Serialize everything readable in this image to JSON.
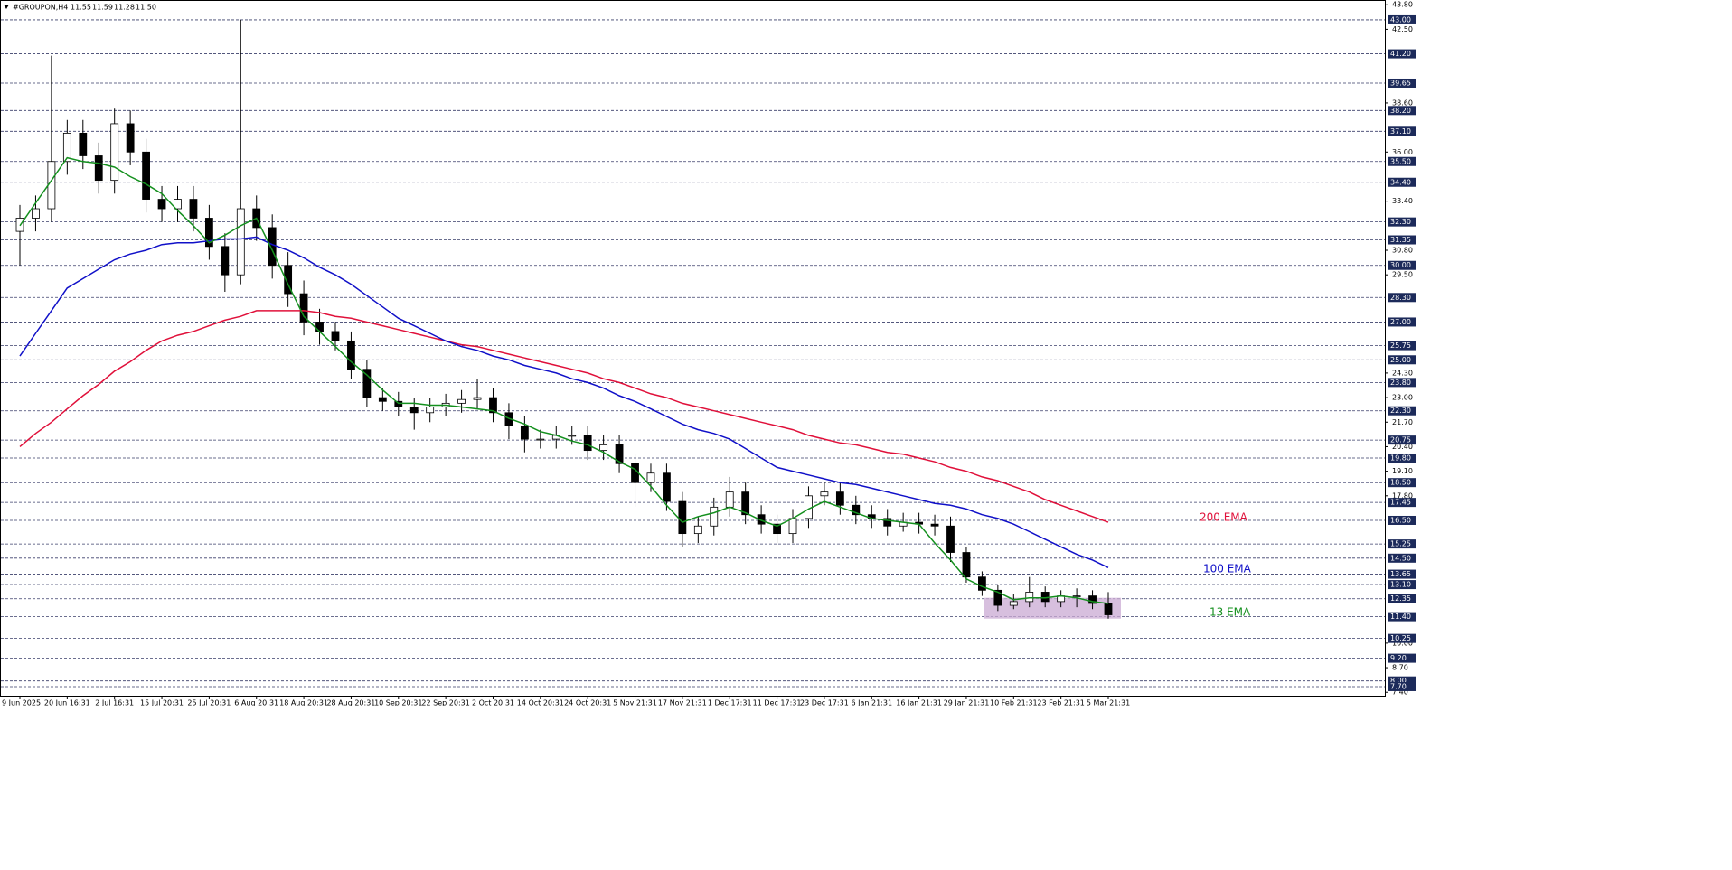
{
  "chart_data": {
    "type": "candlestick",
    "title": "#GROUPON,H4",
    "header_values": [
      {
        "value": 11.55,
        "label": "11.55"
      },
      {
        "value": 11.59,
        "label": "11.59"
      },
      {
        "value": 11.28,
        "label": "11.28"
      },
      {
        "value": 11.5,
        "label": "11.50"
      }
    ],
    "categories": [
      "9 Jun 2025",
      null,
      null,
      "20 Jun 16:31",
      null,
      null,
      "2 Jul 16:31",
      null,
      null,
      "15 Jul 20:31",
      null,
      null,
      "25 Jul 20:31",
      null,
      null,
      "6 Aug 20:31",
      null,
      null,
      "18 Aug 20:31",
      null,
      null,
      "28 Aug 20:31",
      null,
      null,
      "10 Sep 20:31",
      null,
      null,
      "22 Sep 20:31",
      null,
      null,
      "2 Oct 20:31",
      null,
      null,
      "14 Oct 20:31",
      null,
      null,
      "24 Oct 20:31",
      null,
      null,
      "5 Nov 21:31",
      null,
      null,
      "17 Nov 21:31",
      null,
      null,
      "1 Dec 17:31",
      null,
      null,
      "11 Dec 17:31",
      null,
      null,
      "23 Dec 17:31",
      null,
      null,
      "6 Jan 21:31",
      null,
      null,
      "16 Jan 21:31",
      null,
      null,
      "29 Jan 21:31",
      null,
      null,
      "10 Feb 21:31",
      null,
      null,
      "23 Feb 21:31",
      null,
      null,
      "5 Mar 21:31"
    ],
    "open": [
      31.8,
      32.5,
      33,
      35.5,
      37,
      35.8,
      34.5,
      37.5,
      36,
      33.5,
      33,
      33.5,
      32.5,
      31,
      29.5,
      33,
      32,
      30,
      28.5,
      27,
      26.5,
      26,
      24.5,
      23,
      22.8,
      22.5,
      22.2,
      22.5,
      22.7,
      22.9,
      23,
      22.2,
      21.5,
      20.8,
      20.8,
      21,
      21,
      20.2,
      20.5,
      19.5,
      18.5,
      19,
      17.5,
      15.8,
      16.2,
      17.2,
      18,
      16.8,
      16.3,
      15.8,
      16.6,
      17.8,
      18,
      17.3,
      16.8,
      16.6,
      16.2,
      16.4,
      16.3,
      16.2,
      14.8,
      13.5,
      12.8,
      12,
      12.2,
      12.7,
      12.2,
      12.5,
      12.5,
      12.1
    ],
    "high": [
      33.2,
      33.7,
      41.1,
      37.7,
      37.7,
      36.5,
      38.3,
      38.2,
      36.7,
      34.2,
      34.2,
      34.2,
      33.2,
      31.7,
      43.0,
      33.7,
      32.7,
      30.7,
      29.2,
      27.7,
      27.0,
      26.5,
      25.0,
      23.5,
      23.3,
      23.0,
      23.0,
      23.2,
      23.4,
      24.0,
      23.5,
      22.7,
      22.0,
      21.3,
      21.5,
      21.5,
      21.5,
      21.0,
      21.0,
      20.0,
      19.5,
      19.5,
      18.0,
      16.7,
      17.7,
      18.8,
      18.5,
      17.3,
      16.8,
      17.1,
      18.3,
      18.5,
      18.5,
      17.8,
      17.3,
      17.1,
      16.9,
      16.9,
      16.8,
      16.7,
      15.1,
      13.8,
      13.1,
      12.6,
      13.5,
      13.0,
      12.8,
      12.9,
      12.8,
      12.7
    ],
    "low": [
      30.0,
      31.8,
      32.3,
      34.8,
      35.1,
      33.8,
      33.8,
      35.3,
      32.8,
      32.3,
      32.3,
      31.8,
      30.3,
      28.6,
      29.0,
      31.3,
      29.3,
      27.8,
      26.3,
      25.8,
      25.5,
      24.0,
      22.5,
      22.3,
      22.0,
      21.3,
      21.7,
      22.0,
      22.2,
      22.4,
      21.7,
      20.8,
      20.1,
      20.3,
      20.3,
      20.5,
      19.7,
      19.7,
      19.0,
      17.2,
      18.0,
      17.0,
      15.1,
      15.3,
      15.7,
      16.7,
      16.3,
      15.8,
      15.3,
      15.3,
      16.1,
      17.3,
      16.8,
      16.3,
      16.1,
      15.7,
      15.9,
      15.8,
      15.7,
      14.3,
      13.2,
      12.5,
      11.7,
      11.8,
      11.9,
      11.9,
      11.9,
      11.9,
      11.8,
      11.3
    ],
    "close": [
      32.5,
      33,
      35.5,
      37,
      35.8,
      34.5,
      37.5,
      36,
      33.5,
      33,
      33.5,
      32.5,
      31,
      29.5,
      33,
      32,
      30,
      28.5,
      27,
      26.5,
      26,
      24.5,
      23,
      22.8,
      22.5,
      22.2,
      22.5,
      22.7,
      22.9,
      23,
      22.2,
      21.5,
      20.8,
      20.8,
      21,
      21,
      20.2,
      20.5,
      19.5,
      18.5,
      19,
      17.5,
      15.8,
      16.2,
      17.2,
      18,
      16.8,
      16.3,
      15.8,
      16.6,
      17.8,
      18,
      17.3,
      16.8,
      16.6,
      16.2,
      16.4,
      16.3,
      16.2,
      14.8,
      13.5,
      12.8,
      12,
      12.2,
      12.7,
      12.2,
      12.5,
      12.5,
      12.1,
      11.5
    ],
    "series": [
      {
        "name": "200 EMA",
        "color": "#e0103a",
        "values": [
          20.4,
          21.1,
          21.7,
          22.4,
          23.1,
          23.7,
          24.4,
          24.9,
          25.5,
          26.0,
          26.3,
          26.5,
          26.8,
          27.1,
          27.3,
          27.6,
          27.6,
          27.6,
          27.6,
          27.5,
          27.3,
          27.2,
          27.0,
          26.8,
          26.6,
          26.4,
          26.2,
          26.0,
          25.8,
          25.7,
          25.5,
          25.3,
          25.1,
          24.9,
          24.7,
          24.5,
          24.3,
          24.0,
          23.8,
          23.5,
          23.2,
          23.0,
          22.7,
          22.5,
          22.3,
          22.1,
          21.9,
          21.7,
          21.5,
          21.3,
          21.0,
          20.8,
          20.6,
          20.5,
          20.3,
          20.1,
          20.0,
          19.8,
          19.6,
          19.3,
          19.1,
          18.8,
          18.6,
          18.3,
          18.0,
          17.6,
          17.3,
          17.0,
          16.7,
          16.4
        ]
      },
      {
        "name": "100 EMA",
        "color": "#1010c8",
        "values": [
          25.2,
          26.4,
          27.6,
          28.8,
          29.3,
          29.8,
          30.3,
          30.6,
          30.8,
          31.1,
          31.2,
          31.2,
          31.3,
          31.4,
          31.4,
          31.5,
          31.1,
          30.8,
          30.4,
          29.9,
          29.5,
          29.0,
          28.4,
          27.8,
          27.2,
          26.8,
          26.4,
          26.0,
          25.7,
          25.5,
          25.2,
          25.0,
          24.7,
          24.5,
          24.3,
          24.0,
          23.8,
          23.5,
          23.1,
          22.8,
          22.4,
          22.0,
          21.6,
          21.3,
          21.1,
          20.8,
          20.3,
          19.8,
          19.3,
          19.1,
          18.9,
          18.7,
          18.5,
          18.4,
          18.2,
          18.0,
          17.8,
          17.6,
          17.4,
          17.3,
          17.1,
          16.8,
          16.6,
          16.3,
          15.9,
          15.5,
          15.1,
          14.7,
          14.4,
          14.0
        ]
      },
      {
        "name": "13 EMA",
        "color": "#14901e",
        "values": [
          32.1,
          33.3,
          34.5,
          35.7,
          35.5,
          35.4,
          35.2,
          34.7,
          34.3,
          33.8,
          32.9,
          32.1,
          31.2,
          31.6,
          32.1,
          32.5,
          30.8,
          29.0,
          27.3,
          26.5,
          25.7,
          24.9,
          24.2,
          23.4,
          22.7,
          22.7,
          22.6,
          22.6,
          22.5,
          22.4,
          22.3,
          21.9,
          21.6,
          21.2,
          21.0,
          20.7,
          20.5,
          20.1,
          19.6,
          19.2,
          18.3,
          17.3,
          16.4,
          16.7,
          16.9,
          17.2,
          16.9,
          16.5,
          16.2,
          16.6,
          17.1,
          17.5,
          17.2,
          16.9,
          16.6,
          16.5,
          16.4,
          16.3,
          15.3,
          14.4,
          13.4,
          13.0,
          12.7,
          12.3,
          12.4,
          12.4,
          12.5,
          12.4,
          12.2,
          12.1
        ]
      }
    ],
    "zone": {
      "high": 12.4,
      "low": 11.3,
      "color": "#c9a9d3"
    },
    "ylim": [
      7.22,
      44.05
    ],
    "yticks": [
      {
        "value": 43.8,
        "label": "43.80"
      },
      {
        "value": 42.5,
        "label": "42.50"
      },
      {
        "value": 38.6,
        "label": "38.60"
      },
      {
        "value": 36.0,
        "label": "36.00"
      },
      {
        "value": 33.4,
        "label": "33.40"
      },
      {
        "value": 30.8,
        "label": "30.80"
      },
      {
        "value": 29.5,
        "label": "29.50"
      },
      {
        "value": 24.3,
        "label": "24.30"
      },
      {
        "value": 23.0,
        "label": "23.00"
      },
      {
        "value": 21.7,
        "label": "21.70"
      },
      {
        "value": 20.4,
        "label": "20.40"
      },
      {
        "value": 19.1,
        "label": "19.10"
      },
      {
        "value": 17.8,
        "label": "17.80"
      },
      {
        "value": 10.0,
        "label": "10.00"
      },
      {
        "value": 8.7,
        "label": "8.70"
      },
      {
        "value": 7.4,
        "label": "7.40"
      }
    ],
    "levels": [
      {
        "value": 43.0,
        "label": "43.00"
      },
      {
        "value": 41.2,
        "label": "41.20"
      },
      {
        "value": 39.65,
        "label": "39.65"
      },
      {
        "value": 38.2,
        "label": "38.20"
      },
      {
        "value": 37.1,
        "label": "37.10"
      },
      {
        "value": 35.5,
        "label": "35.50"
      },
      {
        "value": 34.4,
        "label": "34.40"
      },
      {
        "value": 32.3,
        "label": "32.30"
      },
      {
        "value": 31.35,
        "label": "31.35"
      },
      {
        "value": 30.0,
        "label": "30.00"
      },
      {
        "value": 28.3,
        "label": "28.30"
      },
      {
        "value": 27.0,
        "label": "27.00"
      },
      {
        "value": 25.75,
        "label": "25.75"
      },
      {
        "value": 25.0,
        "label": "25.00"
      },
      {
        "value": 23.8,
        "label": "23.80"
      },
      {
        "value": 22.3,
        "label": "22.30"
      },
      {
        "value": 20.75,
        "label": "20.75"
      },
      {
        "value": 19.8,
        "label": "19.80"
      },
      {
        "value": 18.5,
        "label": "18.50"
      },
      {
        "value": 17.45,
        "label": "17.45"
      },
      {
        "value": 16.5,
        "label": "16.50"
      },
      {
        "value": 15.25,
        "label": "15.25"
      },
      {
        "value": 14.5,
        "label": "14.50"
      },
      {
        "value": 13.65,
        "label": "13.65"
      },
      {
        "value": 13.1,
        "label": "13.10"
      },
      {
        "value": 12.35,
        "label": "12.35"
      },
      {
        "value": 11.4,
        "label": "11.40"
      },
      {
        "value": 10.25,
        "label": "10.25"
      },
      {
        "value": 9.2,
        "label": "9.20"
      },
      {
        "value": 8.0,
        "label": "8.00"
      },
      {
        "value": 7.7,
        "label": "7.70"
      }
    ]
  }
}
